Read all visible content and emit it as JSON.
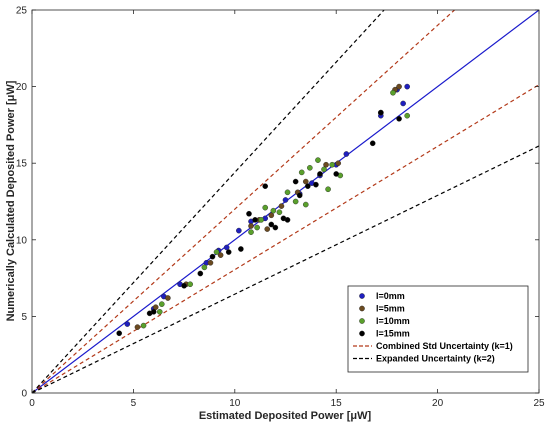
{
  "chart_data": {
    "type": "scatter",
    "title": "",
    "xlabel": "Estimated Deposited Power [μW]",
    "ylabel": "Numerically Calculated Deposited Power [μW]",
    "xlim": [
      0,
      25
    ],
    "ylim": [
      0,
      25
    ],
    "x_ticks": [
      "0",
      "5",
      "10",
      "15",
      "20",
      "25"
    ],
    "y_ticks": [
      "0",
      "5",
      "10",
      "15",
      "20",
      "25"
    ],
    "grid": false,
    "legend_position": "bottom-right",
    "colors": {
      "l0": "#1f1fbf",
      "l5": "#6b4a20",
      "l10": "#5aa02c",
      "l15": "#000000",
      "identity": "#1a1acc",
      "combined": "#b33a1a",
      "expanded": "#000000"
    },
    "series": [
      {
        "name": "l=0mm",
        "points": [
          [
            4.7,
            4.5
          ],
          [
            6.0,
            5.5
          ],
          [
            6.5,
            6.3
          ],
          [
            7.3,
            7.1
          ],
          [
            8.6,
            8.5
          ],
          [
            9.2,
            9.3
          ],
          [
            9.6,
            9.5
          ],
          [
            10.2,
            10.6
          ],
          [
            10.8,
            11.2
          ],
          [
            11.5,
            11.4
          ],
          [
            12.5,
            12.6
          ],
          [
            13.2,
            13.0
          ],
          [
            13.8,
            13.7
          ],
          [
            14.2,
            14.2
          ],
          [
            15.0,
            14.9
          ],
          [
            15.5,
            15.6
          ],
          [
            17.2,
            18.1
          ],
          [
            18.0,
            19.8
          ],
          [
            18.5,
            20.0
          ],
          [
            18.3,
            18.9
          ]
        ]
      },
      {
        "name": "l=5mm",
        "points": [
          [
            5.2,
            4.3
          ],
          [
            6.1,
            5.6
          ],
          [
            6.7,
            6.2
          ],
          [
            7.6,
            7.1
          ],
          [
            8.8,
            8.5
          ],
          [
            9.3,
            9.0
          ],
          [
            10.8,
            10.9
          ],
          [
            11.2,
            11.3
          ],
          [
            11.8,
            11.6
          ],
          [
            12.3,
            12.2
          ],
          [
            13.1,
            13.1
          ],
          [
            13.5,
            13.8
          ],
          [
            14.5,
            14.9
          ],
          [
            15.1,
            15.0
          ],
          [
            17.2,
            18.3
          ],
          [
            17.9,
            19.8
          ],
          [
            18.1,
            20.0
          ],
          [
            11.6,
            10.7
          ]
        ]
      },
      {
        "name": "l=10mm",
        "points": [
          [
            5.5,
            4.4
          ],
          [
            6.3,
            5.3
          ],
          [
            6.4,
            5.8
          ],
          [
            7.8,
            7.1
          ],
          [
            8.5,
            8.2
          ],
          [
            9.1,
            9.2
          ],
          [
            10.8,
            10.5
          ],
          [
            11.1,
            10.8
          ],
          [
            11.3,
            11.3
          ],
          [
            11.5,
            12.1
          ],
          [
            12.2,
            11.8
          ],
          [
            12.6,
            13.1
          ],
          [
            13.0,
            12.5
          ],
          [
            13.3,
            14.4
          ],
          [
            13.7,
            14.7
          ],
          [
            14.1,
            15.2
          ],
          [
            14.4,
            14.6
          ],
          [
            14.8,
            14.9
          ],
          [
            15.2,
            14.2
          ],
          [
            13.5,
            12.3
          ],
          [
            14.6,
            13.3
          ],
          [
            18.5,
            18.1
          ],
          [
            17.8,
            19.6
          ],
          [
            11.9,
            11.9
          ]
        ]
      },
      {
        "name": "l=15mm",
        "points": [
          [
            4.3,
            3.9
          ],
          [
            5.8,
            5.2
          ],
          [
            6.0,
            5.3
          ],
          [
            7.5,
            7.0
          ],
          [
            8.3,
            7.8
          ],
          [
            8.9,
            8.9
          ],
          [
            9.7,
            9.2
          ],
          [
            10.3,
            9.4
          ],
          [
            11.0,
            11.3
          ],
          [
            11.5,
            13.5
          ],
          [
            11.8,
            11.0
          ],
          [
            12.4,
            11.4
          ],
          [
            13.0,
            13.8
          ],
          [
            13.2,
            12.9
          ],
          [
            13.6,
            13.5
          ],
          [
            14.0,
            13.6
          ],
          [
            14.2,
            14.3
          ],
          [
            15.0,
            14.3
          ],
          [
            16.8,
            16.3
          ],
          [
            18.1,
            17.9
          ],
          [
            17.2,
            18.3
          ],
          [
            12.0,
            10.8
          ],
          [
            10.7,
            11.7
          ],
          [
            12.6,
            11.3
          ]
        ]
      }
    ],
    "reference_lines": [
      {
        "name": "",
        "kind": "identity",
        "slope": 1.0
      },
      {
        "name": "Combined Std Uncertainty (k=1)",
        "kind": "combined",
        "slope": 1.2
      },
      {
        "name": "Combined Std Uncertainty (k=1)",
        "kind": "combined",
        "slope": 0.805
      },
      {
        "name": "Expanded Uncertainty (k=2)",
        "kind": "expanded",
        "slope": 1.44
      },
      {
        "name": "Expanded Uncertainty (k=2)",
        "kind": "expanded",
        "slope": 0.645
      }
    ],
    "legend": [
      {
        "label": "l=0mm",
        "kind": "marker",
        "color_key": "l0"
      },
      {
        "label": "l=5mm",
        "kind": "marker",
        "color_key": "l5"
      },
      {
        "label": "l=10mm",
        "kind": "marker",
        "color_key": "l10"
      },
      {
        "label": "l=15mm",
        "kind": "marker",
        "color_key": "l15"
      },
      {
        "label": "Combined Std Uncertainty (k=1)",
        "kind": "dashed",
        "color_key": "combined"
      },
      {
        "label": "Expanded Uncertainty (k=2)",
        "kind": "dashed",
        "color_key": "expanded"
      }
    ]
  }
}
